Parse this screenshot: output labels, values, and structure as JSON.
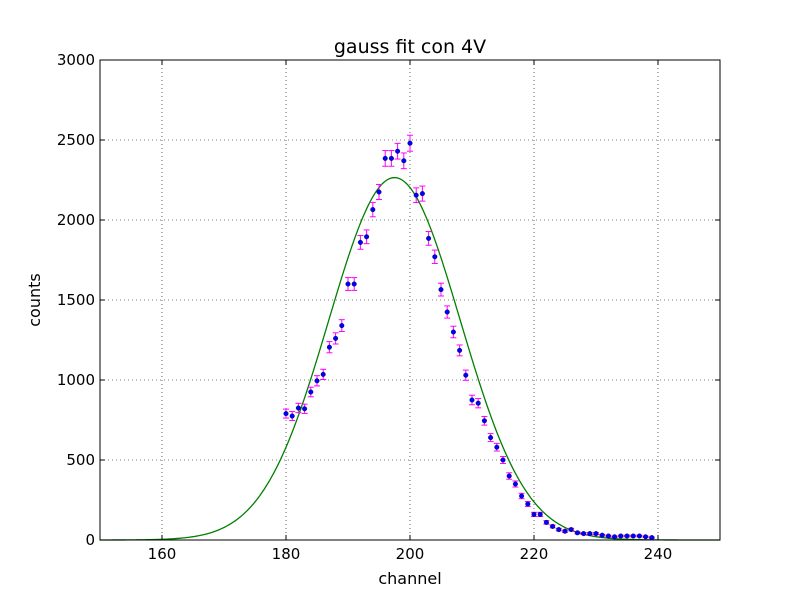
{
  "chart_data": {
    "type": "scatter",
    "title": "gauss fit con 4V",
    "xlabel": "channel",
    "ylabel": "counts",
    "xlim": [
      150,
      250
    ],
    "ylim": [
      0,
      3000
    ],
    "xticks": [
      160,
      180,
      200,
      220,
      240
    ],
    "yticks": [
      0,
      500,
      1000,
      1500,
      2000,
      2500,
      3000
    ],
    "grid": true,
    "colors": {
      "points": "#0000ff",
      "errorbars": "#ff00ff",
      "fit": "#008000"
    },
    "series": [
      {
        "kind": "points_with_errorbars",
        "x": [
          180,
          181,
          182,
          183,
          184,
          185,
          186,
          187,
          188,
          189,
          190,
          191,
          192,
          193,
          194,
          195,
          196,
          197,
          198,
          199,
          200,
          201,
          202,
          203,
          204,
          205,
          206,
          207,
          208,
          209,
          210,
          211,
          212,
          213,
          214,
          215,
          216,
          217,
          218,
          219,
          220,
          221,
          222,
          223,
          224,
          225,
          226,
          227,
          228,
          229,
          230,
          231,
          232,
          233,
          234,
          235,
          236,
          237,
          238,
          239
        ],
        "y": [
          790,
          775,
          825,
          820,
          925,
          995,
          1035,
          1205,
          1260,
          1340,
          1600,
          1600,
          1860,
          1895,
          2065,
          2175,
          2385,
          2385,
          2430,
          2370,
          2480,
          2155,
          2165,
          1885,
          1770,
          1565,
          1425,
          1300,
          1185,
          1030,
          875,
          855,
          745,
          640,
          580,
          500,
          400,
          350,
          275,
          225,
          160,
          160,
          110,
          85,
          65,
          55,
          65,
          45,
          40,
          40,
          40,
          30,
          25,
          20,
          25,
          25,
          25,
          25,
          20,
          15
        ],
        "yerr": [
          28,
          28,
          29,
          29,
          30,
          32,
          32,
          35,
          35,
          37,
          40,
          40,
          43,
          43,
          45,
          47,
          49,
          49,
          49,
          49,
          50,
          46,
          47,
          43,
          42,
          40,
          38,
          36,
          34,
          32,
          30,
          29,
          27,
          25,
          24,
          22,
          20,
          19,
          17,
          15,
          13,
          13,
          11,
          9,
          8,
          7,
          8,
          7,
          6,
          6,
          6,
          5,
          5,
          4,
          5,
          5,
          5,
          5,
          4,
          4
        ]
      },
      {
        "kind": "fit_curve",
        "function": "gaussian",
        "amplitude": 2265,
        "mean": 197.5,
        "sigma": 10.6
      }
    ]
  }
}
